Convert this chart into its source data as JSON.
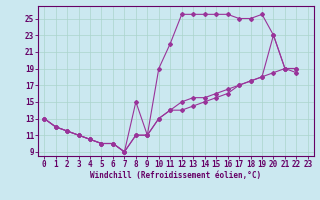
{
  "xlabel": "Windchill (Refroidissement éolien,°C)",
  "bg_color": "#cbe8f0",
  "grid_color": "#aad4cc",
  "line_color": "#993399",
  "xlim": [
    -0.5,
    23.5
  ],
  "ylim": [
    8.5,
    26.5
  ],
  "yticks": [
    9,
    11,
    13,
    15,
    17,
    19,
    21,
    23,
    25
  ],
  "xticks": [
    0,
    1,
    2,
    3,
    4,
    5,
    6,
    7,
    8,
    9,
    10,
    11,
    12,
    13,
    14,
    15,
    16,
    17,
    18,
    19,
    20,
    21,
    22,
    23
  ],
  "line_top_x": [
    0,
    1,
    2,
    3,
    4,
    5,
    6,
    7,
    8,
    9,
    10,
    11,
    12,
    13,
    14,
    15,
    16,
    17,
    18,
    19,
    20,
    21,
    22
  ],
  "line_top_y": [
    13,
    12,
    11.5,
    11,
    10.5,
    10,
    10,
    9,
    15,
    11,
    19,
    22,
    25.5,
    25.5,
    25.5,
    25.5,
    25.5,
    25,
    25,
    25.5,
    23,
    19,
    19
  ],
  "line_mid_x": [
    0,
    1,
    2,
    3,
    4,
    5,
    6,
    7,
    8,
    9,
    10,
    11,
    12,
    13,
    14,
    15,
    16,
    17,
    18,
    19,
    20,
    21,
    22
  ],
  "line_mid_y": [
    13,
    12,
    11.5,
    11,
    10.5,
    10,
    10,
    9,
    11,
    11,
    13,
    14,
    15,
    15.5,
    15.5,
    16,
    16.5,
    17,
    17.5,
    18,
    23,
    19,
    19
  ],
  "line_bot_x": [
    0,
    1,
    2,
    3,
    4,
    5,
    6,
    7,
    8,
    9,
    10,
    11,
    12,
    13,
    14,
    15,
    16,
    17,
    18,
    19,
    20,
    21,
    22
  ],
  "line_bot_y": [
    13,
    12,
    11.5,
    11,
    10.5,
    10,
    10,
    9,
    11,
    11,
    13,
    14,
    14,
    14.5,
    15,
    15.5,
    16,
    17,
    17.5,
    18,
    18.5,
    19,
    18.5
  ]
}
